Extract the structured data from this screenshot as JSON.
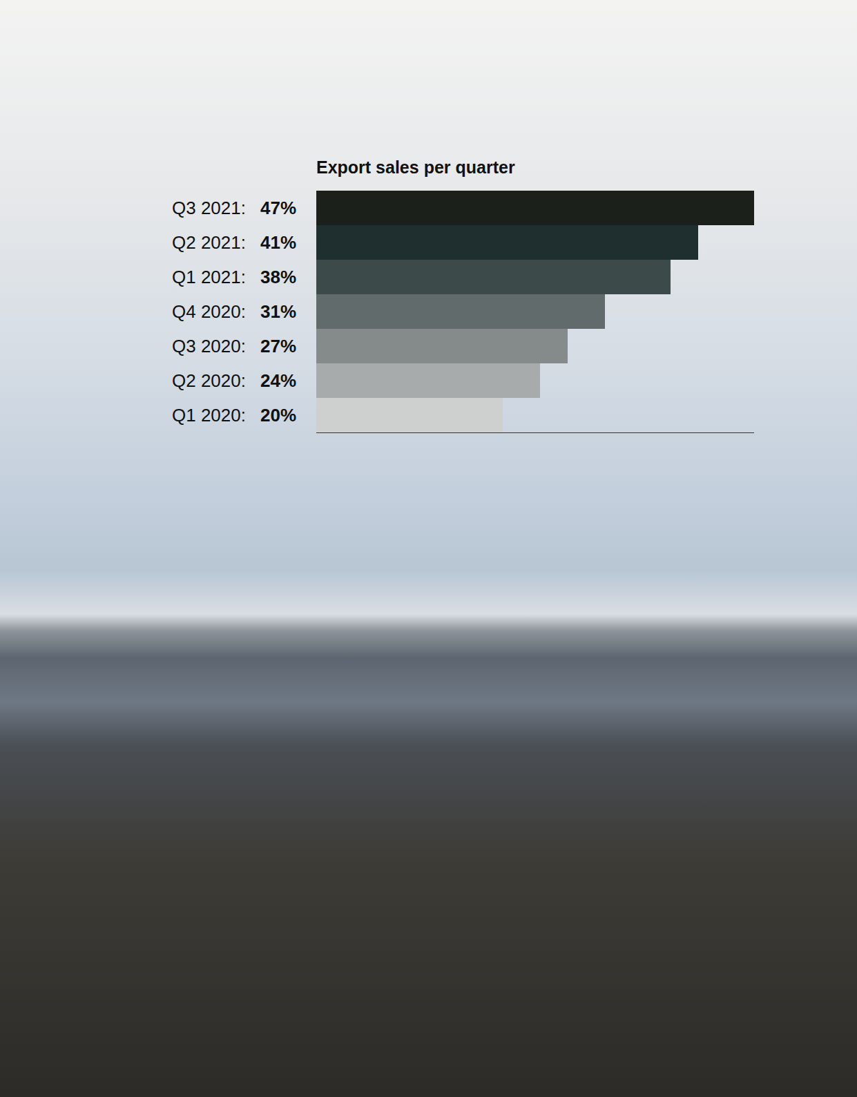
{
  "chart_data": {
    "type": "bar",
    "title": "Export sales per quarter",
    "orientation": "horizontal",
    "categories": [
      "Q3 2021:",
      "Q2 2021:",
      "Q1 2021:",
      "Q4 2020:",
      "Q3 2020:",
      "Q2 2020:",
      "Q1 2020:"
    ],
    "values": [
      47,
      41,
      38,
      31,
      27,
      24,
      20
    ],
    "value_labels": [
      "47%",
      "41%",
      "38%",
      "31%",
      "27%",
      "24%",
      "20%"
    ],
    "colors": [
      "#1b201b",
      "#1f2e2f",
      "#3d4a4a",
      "#626b6b",
      "#848b8a",
      "#a7abab",
      "#cdd0cf"
    ],
    "xlim": [
      0,
      47
    ],
    "data_labels": true,
    "tick_labels": false,
    "grid": false
  }
}
